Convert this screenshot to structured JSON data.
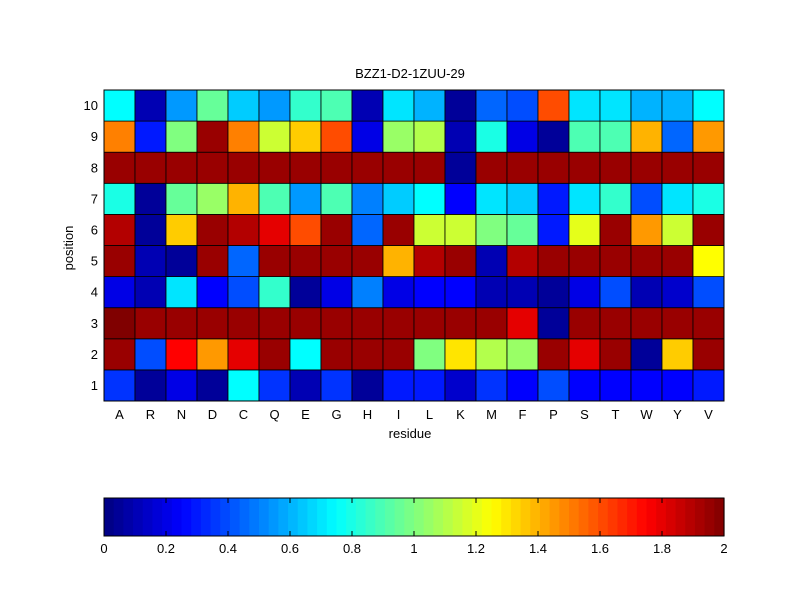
{
  "chart_data": {
    "type": "heatmap",
    "title": "BZZ1-D2-1ZUU-29",
    "xlabel": "residue",
    "ylabel": "position",
    "x_categories": [
      "A",
      "R",
      "N",
      "D",
      "C",
      "Q",
      "E",
      "G",
      "H",
      "I",
      "L",
      "K",
      "M",
      "F",
      "P",
      "S",
      "T",
      "W",
      "Y",
      "V"
    ],
    "y_categories": [
      "1",
      "2",
      "3",
      "4",
      "5",
      "6",
      "7",
      "8",
      "9",
      "10"
    ],
    "colormap": "jet",
    "clim": [
      0,
      2
    ],
    "colorbar": {
      "placement": "bottom",
      "ticks": [
        "0",
        "0.2",
        "0.4",
        "0.6",
        "0.8",
        "1",
        "1.2",
        "1.4",
        "1.6",
        "1.8",
        "2"
      ]
    },
    "grid": false,
    "values": [
      [
        0.35,
        0.05,
        0.2,
        0.05,
        0.75,
        0.35,
        0.1,
        0.35,
        0.05,
        0.3,
        0.3,
        0.15,
        0.35,
        0.25,
        0.4,
        0.25,
        0.25,
        0.25,
        0.25,
        0.3
      ],
      [
        1.95,
        0.4,
        1.75,
        1.45,
        1.8,
        1.95,
        0.75,
        1.95,
        1.95,
        1.95,
        1.0,
        1.3,
        1.1,
        1.05,
        1.95,
        1.8,
        1.95,
        0.05,
        1.35,
        1.95
      ],
      [
        2.0,
        1.95,
        1.95,
        1.95,
        1.95,
        1.95,
        1.95,
        1.95,
        1.95,
        1.95,
        1.95,
        1.95,
        1.95,
        1.8,
        0.05,
        1.95,
        1.95,
        1.95,
        1.95,
        1.95
      ],
      [
        0.2,
        0.1,
        0.7,
        0.25,
        0.4,
        0.85,
        0.05,
        0.2,
        0.5,
        0.2,
        0.25,
        0.25,
        0.1,
        0.1,
        0.05,
        0.2,
        0.4,
        0.1,
        0.15,
        0.4
      ],
      [
        1.95,
        0.1,
        0.05,
        1.95,
        0.45,
        1.95,
        1.95,
        1.95,
        1.95,
        1.4,
        1.9,
        1.95,
        0.1,
        1.9,
        1.95,
        1.95,
        1.95,
        1.95,
        1.95,
        1.25
      ],
      [
        1.9,
        0.05,
        1.35,
        1.95,
        1.9,
        1.8,
        1.6,
        1.95,
        0.45,
        1.95,
        1.15,
        1.15,
        1.0,
        0.95,
        0.3,
        1.2,
        1.95,
        1.45,
        1.15,
        1.95
      ],
      [
        0.8,
        0.05,
        0.95,
        1.05,
        1.4,
        0.9,
        0.55,
        0.9,
        0.5,
        0.65,
        0.75,
        0.25,
        0.7,
        0.65,
        0.3,
        0.7,
        0.85,
        0.4,
        0.7,
        0.8
      ],
      [
        1.95,
        1.95,
        1.95,
        1.95,
        1.95,
        1.95,
        1.95,
        1.95,
        1.95,
        1.95,
        1.95,
        0.05,
        1.95,
        1.95,
        1.95,
        1.95,
        1.95,
        1.95,
        1.95,
        1.95
      ],
      [
        1.5,
        0.3,
        1.0,
        1.95,
        1.5,
        1.15,
        1.35,
        1.6,
        0.2,
        1.05,
        1.1,
        0.1,
        0.8,
        0.2,
        0.05,
        0.9,
        0.9,
        1.4,
        0.45,
        1.45
      ],
      [
        0.75,
        0.1,
        0.55,
        0.95,
        0.65,
        0.55,
        0.85,
        0.9,
        0.1,
        0.7,
        0.6,
        0.05,
        0.45,
        0.4,
        1.6,
        0.7,
        0.7,
        0.6,
        0.6,
        0.75
      ]
    ]
  }
}
